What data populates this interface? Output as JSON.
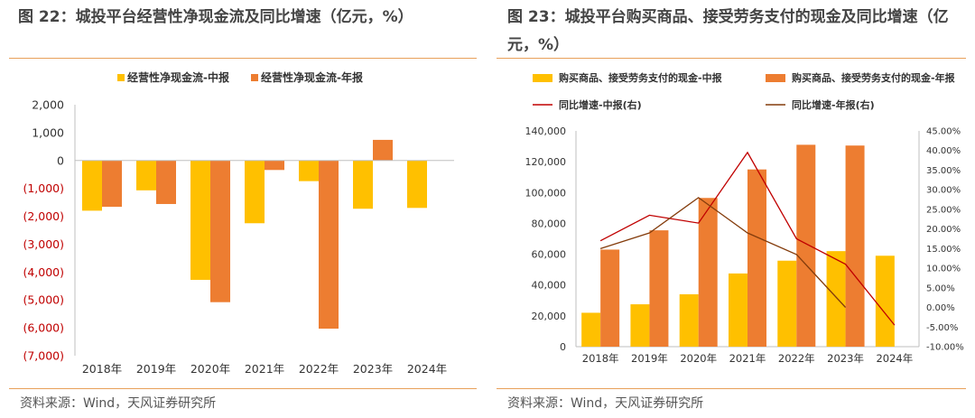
{
  "figures": [
    {
      "title": "图 22：城投平台经营性净现金流及同比增速（亿元，%）",
      "source": "资料来源：Wind，天风证券研究所"
    },
    {
      "title": "图 23：城投平台购买商品、接受劳务支付的现金及同比增速（亿元，%）",
      "source": "资料来源：Wind，天风证券研究所"
    }
  ],
  "chart_data": [
    {
      "type": "bar",
      "categories": [
        "2018年",
        "2019年",
        "2020年",
        "2021年",
        "2022年",
        "2023年",
        "2024年"
      ],
      "series": [
        {
          "name": "经营性净现金流-中报",
          "color": "#FFC000",
          "values": [
            -1800,
            -1070,
            -4280,
            -2250,
            -740,
            -1730,
            -1700
          ]
        },
        {
          "name": "经营性净现金流-年报",
          "color": "#ED7D31",
          "values": [
            -1660,
            -1560,
            -5080,
            -340,
            -6030,
            740,
            null
          ]
        }
      ],
      "ylim": [
        -7000,
        2000
      ],
      "yticks": [
        2000,
        1000,
        0,
        -1000,
        -2000,
        -3000,
        -4000,
        -5000,
        -6000,
        -7000
      ],
      "ytick_labels": [
        "2,000",
        "1,000",
        "0",
        "(1,000)",
        "(2,000)",
        "(3,000)",
        "(4,000)",
        "(5,000)",
        "(6,000)",
        "(7,000)"
      ],
      "negative_tick_color": "#C00000",
      "legend_position": "top",
      "grid": false
    },
    {
      "type": "bar+line",
      "categories": [
        "2018年",
        "2019年",
        "2020年",
        "2021年",
        "2022年",
        "2023年",
        "2024年"
      ],
      "bar_series": [
        {
          "name": "购买商品、接受劳务支付的现金-中报",
          "color": "#FFC000",
          "values": [
            22000,
            27500,
            34000,
            47500,
            55800,
            62000,
            59000
          ]
        },
        {
          "name": "购买商品、接受劳务支付的现金-年报",
          "color": "#ED7D31",
          "values": [
            63000,
            75500,
            96500,
            115000,
            131000,
            130500,
            null
          ]
        }
      ],
      "line_series": [
        {
          "name": "同比增速-中报(右)",
          "color": "#C00000",
          "values": [
            17.0,
            23.5,
            21.5,
            39.5,
            17.5,
            11.0,
            -4.5
          ]
        },
        {
          "name": "同比增速-年报(右)",
          "color": "#843C0C",
          "values": [
            15.0,
            19.0,
            28.0,
            19.0,
            13.5,
            0.0,
            null
          ]
        }
      ],
      "ylim": [
        0,
        140000
      ],
      "yticks": [
        0,
        20000,
        40000,
        60000,
        80000,
        100000,
        120000,
        140000
      ],
      "ytick_labels": [
        "0",
        "20,000",
        "40,000",
        "60,000",
        "80,000",
        "100,000",
        "120,000",
        "140,000"
      ],
      "y2lim": [
        -10,
        45
      ],
      "y2ticks": [
        -10,
        -5,
        0,
        5,
        10,
        15,
        20,
        25,
        30,
        35,
        40,
        45
      ],
      "y2tick_labels": [
        "-10.00%",
        "-5.00%",
        "0.00%",
        "5.00%",
        "10.00%",
        "15.00%",
        "20.00%",
        "25.00%",
        "30.00%",
        "35.00%",
        "40.00%",
        "45.00%"
      ],
      "legend_position": "top",
      "grid": false
    }
  ]
}
